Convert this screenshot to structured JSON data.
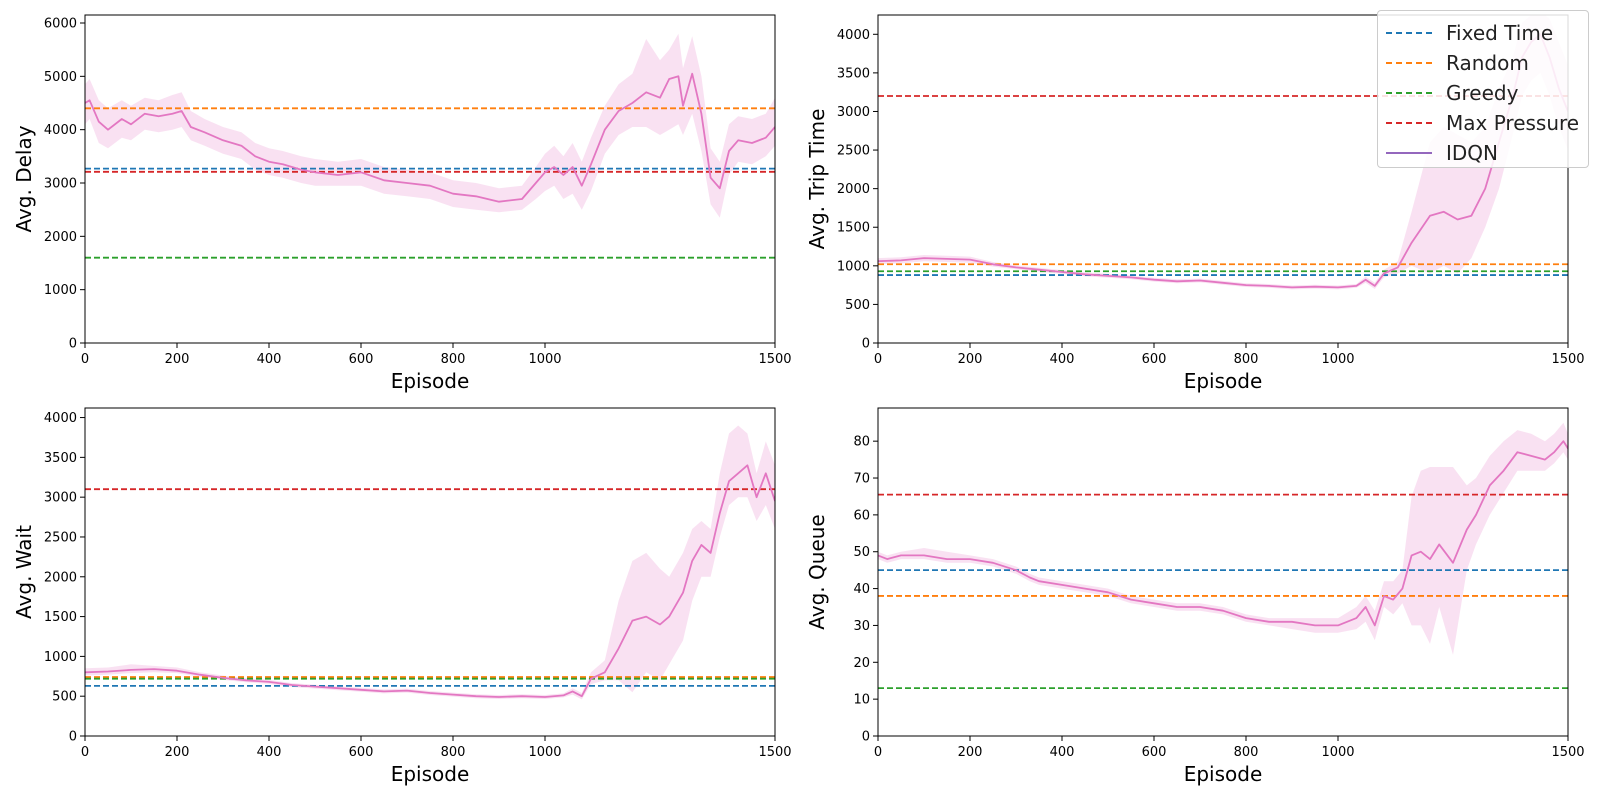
{
  "colors": {
    "fixed_time": "#1f77b4",
    "random": "#ff7f0e",
    "greedy": "#2ca02c",
    "max_pressure": "#d62728",
    "idqn": "#e377c2",
    "idqn_legend": "#9467bd"
  },
  "legend": {
    "placement": "top-right",
    "items": [
      {
        "label": "Fixed Time",
        "style": "dashed",
        "color": "#1f77b4"
      },
      {
        "label": "Random",
        "style": "dashed",
        "color": "#ff7f0e"
      },
      {
        "label": "Greedy",
        "style": "dashed",
        "color": "#2ca02c"
      },
      {
        "label": "Max Pressure",
        "style": "dashed",
        "color": "#d62728"
      },
      {
        "label": "IDQN",
        "style": "solid",
        "color": "#9467bd"
      }
    ]
  },
  "chart_data": [
    {
      "type": "line",
      "xlabel": "Episode",
      "ylabel": "Avg. Delay",
      "xlim": [
        0,
        1500
      ],
      "ylim": [
        0,
        6150
      ],
      "xticks": [
        0,
        200,
        400,
        600,
        800,
        1000,
        1500
      ],
      "yticks": [
        0,
        1000,
        2000,
        3000,
        4000,
        5000,
        6000
      ],
      "baselines": [
        {
          "name": "Fixed Time",
          "value": 3270
        },
        {
          "name": "Random",
          "value": 4400
        },
        {
          "name": "Greedy",
          "value": 1600
        },
        {
          "name": "Max Pressure",
          "value": 3210
        }
      ],
      "series": [
        {
          "name": "IDQN",
          "x": [
            0,
            10,
            30,
            50,
            80,
            100,
            130,
            160,
            190,
            210,
            230,
            260,
            300,
            340,
            370,
            400,
            430,
            470,
            500,
            550,
            600,
            650,
            700,
            750,
            800,
            850,
            900,
            950,
            980,
            1000,
            1020,
            1040,
            1060,
            1080,
            1100,
            1130,
            1160,
            1190,
            1220,
            1250,
            1270,
            1290,
            1300,
            1320,
            1340,
            1360,
            1380,
            1400,
            1420,
            1450,
            1480,
            1500
          ],
          "y": [
            4500,
            4550,
            4150,
            4000,
            4200,
            4100,
            4300,
            4250,
            4300,
            4350,
            4050,
            3950,
            3800,
            3700,
            3500,
            3400,
            3350,
            3250,
            3200,
            3150,
            3200,
            3050,
            3000,
            2950,
            2800,
            2750,
            2650,
            2700,
            3000,
            3200,
            3300,
            3150,
            3300,
            2950,
            3350,
            4000,
            4350,
            4500,
            4700,
            4600,
            4950,
            5000,
            4450,
            5050,
            4300,
            3100,
            2900,
            3600,
            3800,
            3750,
            3850,
            4050
          ],
          "lower": [
            4100,
            4200,
            3750,
            3650,
            3850,
            3800,
            4000,
            3950,
            4000,
            4050,
            3800,
            3700,
            3550,
            3450,
            3250,
            3150,
            3100,
            3000,
            2950,
            2950,
            2950,
            2800,
            2750,
            2700,
            2550,
            2500,
            2450,
            2500,
            2700,
            2850,
            2950,
            2700,
            2800,
            2500,
            2850,
            3550,
            3900,
            4050,
            4050,
            3900,
            4000,
            4100,
            3900,
            4300,
            3600,
            2600,
            2350,
            3150,
            3400,
            3350,
            3500,
            3700
          ],
          "upper": [
            4850,
            4950,
            4550,
            4400,
            4550,
            4450,
            4600,
            4550,
            4650,
            4700,
            4350,
            4200,
            4050,
            3950,
            3750,
            3650,
            3600,
            3500,
            3450,
            3400,
            3450,
            3300,
            3250,
            3200,
            3050,
            3000,
            2900,
            2950,
            3300,
            3550,
            3700,
            3500,
            3750,
            3400,
            3850,
            4450,
            4850,
            5050,
            5700,
            5300,
            5500,
            5800,
            5150,
            5750,
            5000,
            3650,
            3400,
            4100,
            4250,
            4200,
            4300,
            4600
          ]
        }
      ]
    },
    {
      "type": "line",
      "xlabel": "Episode",
      "ylabel": "Avg. Trip Time",
      "xlim": [
        0,
        1500
      ],
      "ylim": [
        0,
        4250
      ],
      "xticks": [
        0,
        200,
        400,
        600,
        800,
        1000,
        1500
      ],
      "yticks": [
        0,
        500,
        1000,
        1500,
        2000,
        2500,
        3000,
        3500,
        4000
      ],
      "baselines": [
        {
          "name": "Fixed Time",
          "value": 880
        },
        {
          "name": "Random",
          "value": 1020
        },
        {
          "name": "Greedy",
          "value": 930
        },
        {
          "name": "Max Pressure",
          "value": 3200
        }
      ],
      "series": [
        {
          "name": "IDQN",
          "x": [
            0,
            50,
            100,
            150,
            200,
            250,
            300,
            350,
            400,
            450,
            500,
            550,
            600,
            650,
            700,
            750,
            800,
            850,
            900,
            950,
            1000,
            1040,
            1060,
            1080,
            1100,
            1130,
            1160,
            1200,
            1230,
            1260,
            1290,
            1320,
            1350,
            1380,
            1400,
            1420,
            1440,
            1460,
            1480,
            1500
          ],
          "y": [
            1060,
            1070,
            1100,
            1090,
            1080,
            1020,
            980,
            950,
            920,
            890,
            870,
            850,
            820,
            800,
            810,
            780,
            750,
            740,
            720,
            730,
            720,
            740,
            820,
            740,
            900,
            980,
            1300,
            1650,
            1700,
            1600,
            1650,
            2000,
            2600,
            3200,
            3700,
            3900,
            4000,
            3700,
            3300,
            3000
          ],
          "lower": [
            1020,
            1030,
            1060,
            1050,
            1040,
            990,
            955,
            925,
            895,
            865,
            845,
            825,
            795,
            775,
            785,
            755,
            725,
            715,
            695,
            705,
            695,
            715,
            780,
            700,
            850,
            900,
            1000,
            900,
            1000,
            900,
            1100,
            1500,
            2000,
            2700,
            3200,
            3400,
            3500,
            3200,
            2800,
            2500
          ],
          "upper": [
            1100,
            1110,
            1140,
            1130,
            1120,
            1050,
            1005,
            975,
            945,
            915,
            895,
            875,
            845,
            825,
            835,
            805,
            775,
            765,
            745,
            755,
            745,
            765,
            860,
            780,
            950,
            1060,
            1700,
            2600,
            2800,
            2700,
            2600,
            2800,
            3300,
            3700,
            4150,
            4250,
            4300,
            4200,
            3900,
            3600
          ]
        }
      ]
    },
    {
      "type": "line",
      "xlabel": "Episode",
      "ylabel": "Avg. Wait",
      "xlim": [
        0,
        1500
      ],
      "ylim": [
        0,
        4120
      ],
      "xticks": [
        0,
        200,
        400,
        600,
        800,
        1000,
        1500
      ],
      "yticks": [
        0,
        500,
        1000,
        1500,
        2000,
        2500,
        3000,
        3500,
        4000
      ],
      "baselines": [
        {
          "name": "Fixed Time",
          "value": 630
        },
        {
          "name": "Random",
          "value": 740
        },
        {
          "name": "Greedy",
          "value": 720
        },
        {
          "name": "Max Pressure",
          "value": 3100
        }
      ],
      "series": [
        {
          "name": "IDQN",
          "x": [
            0,
            50,
            100,
            150,
            200,
            250,
            300,
            350,
            400,
            450,
            500,
            550,
            600,
            650,
            700,
            750,
            800,
            850,
            900,
            950,
            1000,
            1040,
            1060,
            1080,
            1100,
            1130,
            1160,
            1190,
            1220,
            1250,
            1270,
            1300,
            1320,
            1340,
            1360,
            1380,
            1400,
            1420,
            1440,
            1460,
            1480,
            1500
          ],
          "y": [
            800,
            810,
            830,
            840,
            820,
            770,
            730,
            700,
            680,
            640,
            620,
            600,
            580,
            560,
            570,
            540,
            520,
            500,
            490,
            500,
            490,
            510,
            560,
            500,
            720,
            800,
            1100,
            1450,
            1500,
            1400,
            1500,
            1800,
            2200,
            2400,
            2300,
            2800,
            3200,
            3300,
            3400,
            3000,
            3300,
            2950
          ],
          "lower": [
            760,
            770,
            790,
            800,
            790,
            745,
            705,
            675,
            655,
            615,
            595,
            575,
            555,
            535,
            545,
            515,
            495,
            475,
            465,
            475,
            465,
            485,
            520,
            460,
            650,
            700,
            700,
            550,
            800,
            700,
            900,
            1200,
            1700,
            2000,
            2000,
            2500,
            2900,
            3000,
            3000,
            2700,
            2900,
            2600
          ],
          "upper": [
            850,
            860,
            900,
            880,
            860,
            800,
            760,
            725,
            705,
            665,
            645,
            625,
            605,
            585,
            595,
            565,
            545,
            525,
            515,
            525,
            515,
            535,
            600,
            540,
            800,
            950,
            1700,
            2200,
            2300,
            2100,
            2000,
            2300,
            2600,
            2700,
            2600,
            3300,
            3800,
            3900,
            3800,
            3300,
            3700,
            3400
          ]
        }
      ]
    },
    {
      "type": "line",
      "xlabel": "Episode",
      "ylabel": "Avg. Queue",
      "xlim": [
        0,
        1500
      ],
      "ylim": [
        0,
        89
      ],
      "xticks": [
        0,
        200,
        400,
        600,
        800,
        1000,
        1500
      ],
      "yticks": [
        0,
        10,
        20,
        30,
        40,
        50,
        60,
        70,
        80
      ],
      "baselines": [
        {
          "name": "Fixed Time",
          "value": 45
        },
        {
          "name": "Random",
          "value": 38
        },
        {
          "name": "Greedy",
          "value": 13
        },
        {
          "name": "Max Pressure",
          "value": 65.5
        }
      ],
      "series": [
        {
          "name": "IDQN",
          "x": [
            0,
            20,
            50,
            100,
            150,
            200,
            250,
            300,
            330,
            350,
            400,
            450,
            500,
            550,
            600,
            650,
            700,
            750,
            800,
            850,
            900,
            950,
            1000,
            1040,
            1060,
            1080,
            1100,
            1120,
            1140,
            1160,
            1180,
            1200,
            1220,
            1250,
            1280,
            1300,
            1330,
            1360,
            1390,
            1420,
            1450,
            1470,
            1490,
            1500
          ],
          "y": [
            49,
            48,
            49,
            49,
            48,
            48,
            47,
            45,
            43,
            42,
            41,
            40,
            39,
            37,
            36,
            35,
            35,
            34,
            32,
            31,
            31,
            30,
            30,
            32,
            35,
            30,
            38,
            37,
            40,
            49,
            50,
            48,
            52,
            47,
            56,
            60,
            68,
            72,
            77,
            76,
            75,
            77,
            80,
            78
          ],
          "lower": [
            48,
            47,
            48,
            48,
            47,
            47,
            46,
            44,
            42,
            41,
            40,
            39,
            38,
            36,
            35,
            34,
            34,
            33,
            31,
            30,
            29,
            28,
            28,
            29,
            31,
            26,
            35,
            33,
            36,
            30,
            30,
            25,
            35,
            22,
            45,
            52,
            60,
            66,
            72,
            72,
            72,
            74,
            77,
            75
          ],
          "upper": [
            50,
            49,
            50,
            51,
            50,
            49,
            48,
            46,
            44,
            43,
            42,
            41,
            40,
            38,
            37,
            36,
            36,
            35,
            33,
            32,
            32,
            32,
            32,
            35,
            38,
            34,
            42,
            42,
            45,
            65,
            72,
            73,
            73,
            73,
            68,
            70,
            76,
            80,
            83,
            82,
            80,
            82,
            85,
            82
          ]
        }
      ]
    }
  ]
}
